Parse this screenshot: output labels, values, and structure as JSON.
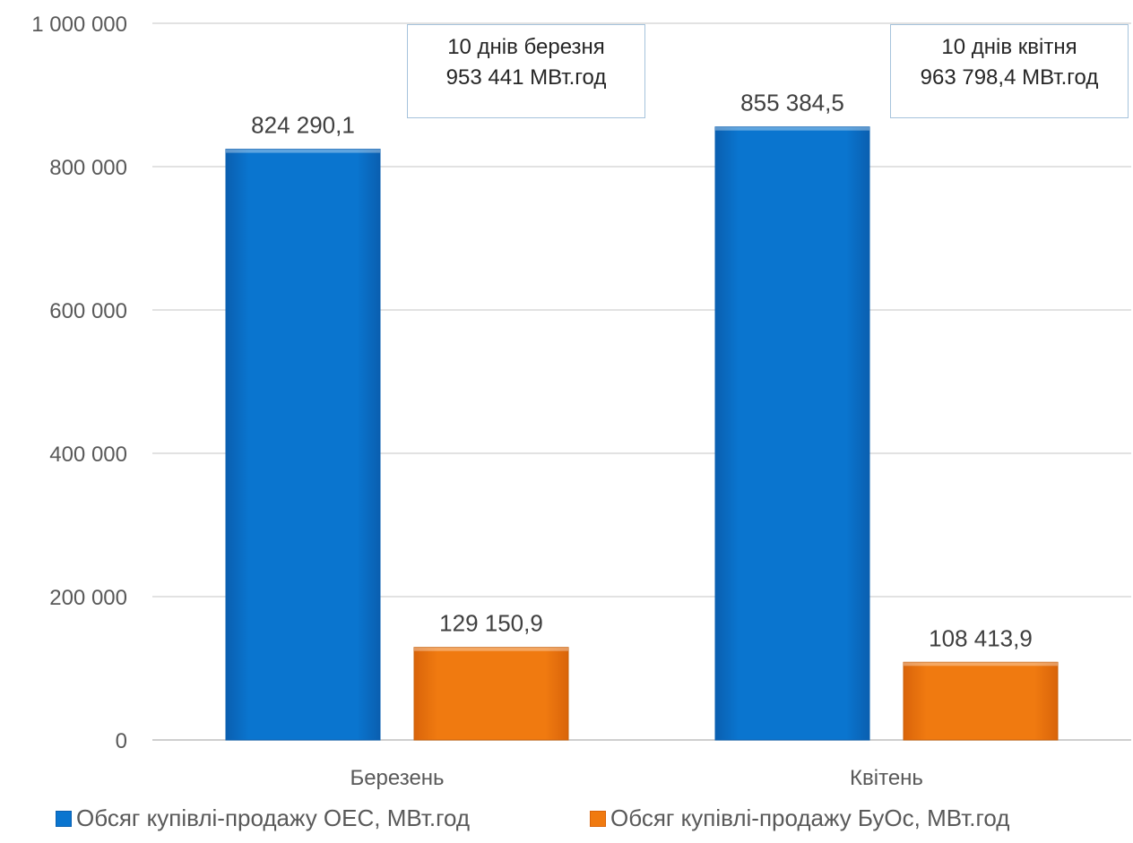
{
  "chart_data": {
    "type": "bar",
    "categories": [
      "Березень",
      "Квітень"
    ],
    "series": [
      {
        "name": "Обсяг купівлі-продажу ОЕС, МВт.год",
        "values": [
          824290.1,
          855384.5
        ],
        "labels": [
          "824 290,1",
          "855 384,5"
        ],
        "color": "#0a75cf"
      },
      {
        "name": "Обсяг купівлі-продажу БуОс, МВт.год",
        "values": [
          129150.9,
          108413.9
        ],
        "labels": [
          "129 150,9",
          "108 413,9"
        ],
        "color": "#f07a10"
      }
    ],
    "ylim": [
      0,
      1000000
    ],
    "yticks": [
      0,
      200000,
      400000,
      600000,
      800000,
      1000000
    ],
    "ytick_labels": [
      "0",
      "200 000",
      "400 000",
      "600 000",
      "800 000",
      "1 000 000"
    ],
    "grid": true,
    "legend_position": "bottom",
    "annotations": [
      {
        "line1": "10 днів березня",
        "line2": "953 441 МВт.год"
      },
      {
        "line1": "10 днів квітня",
        "line2": "963 798,4 МВт.год"
      }
    ]
  },
  "colors": {
    "grid": "#d9d9d9",
    "axis": "#bfbfbf",
    "callout_border": "#a6c3dc"
  }
}
